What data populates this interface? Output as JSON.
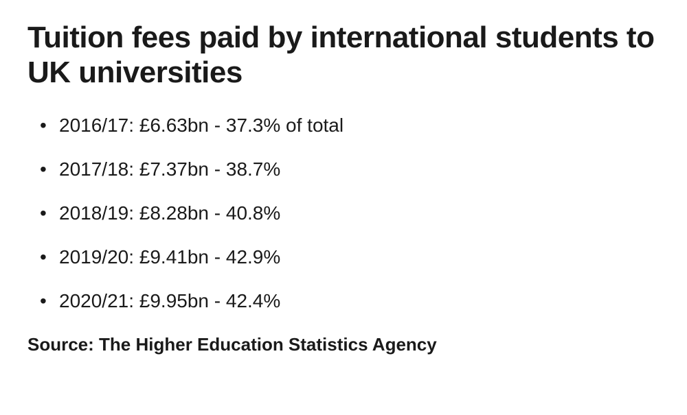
{
  "title": "Tuition fees paid by international students to UK universities",
  "items": [
    "2016/17: £6.63bn - 37.3% of total",
    "2017/18: £7.37bn - 38.7%",
    "2018/19: £8.28bn - 40.8%",
    "2019/20: £9.41bn - 42.9%",
    "2020/21: £9.95bn - 42.4%"
  ],
  "source": "Source: The Higher Education Statistics Agency",
  "styles": {
    "title_fontsize": 44,
    "title_fontweight": 700,
    "item_fontsize": 28,
    "item_fontweight": 400,
    "source_fontsize": 26,
    "source_fontweight": 700,
    "text_color": "#1a1a1a",
    "background_color": "#ffffff"
  }
}
